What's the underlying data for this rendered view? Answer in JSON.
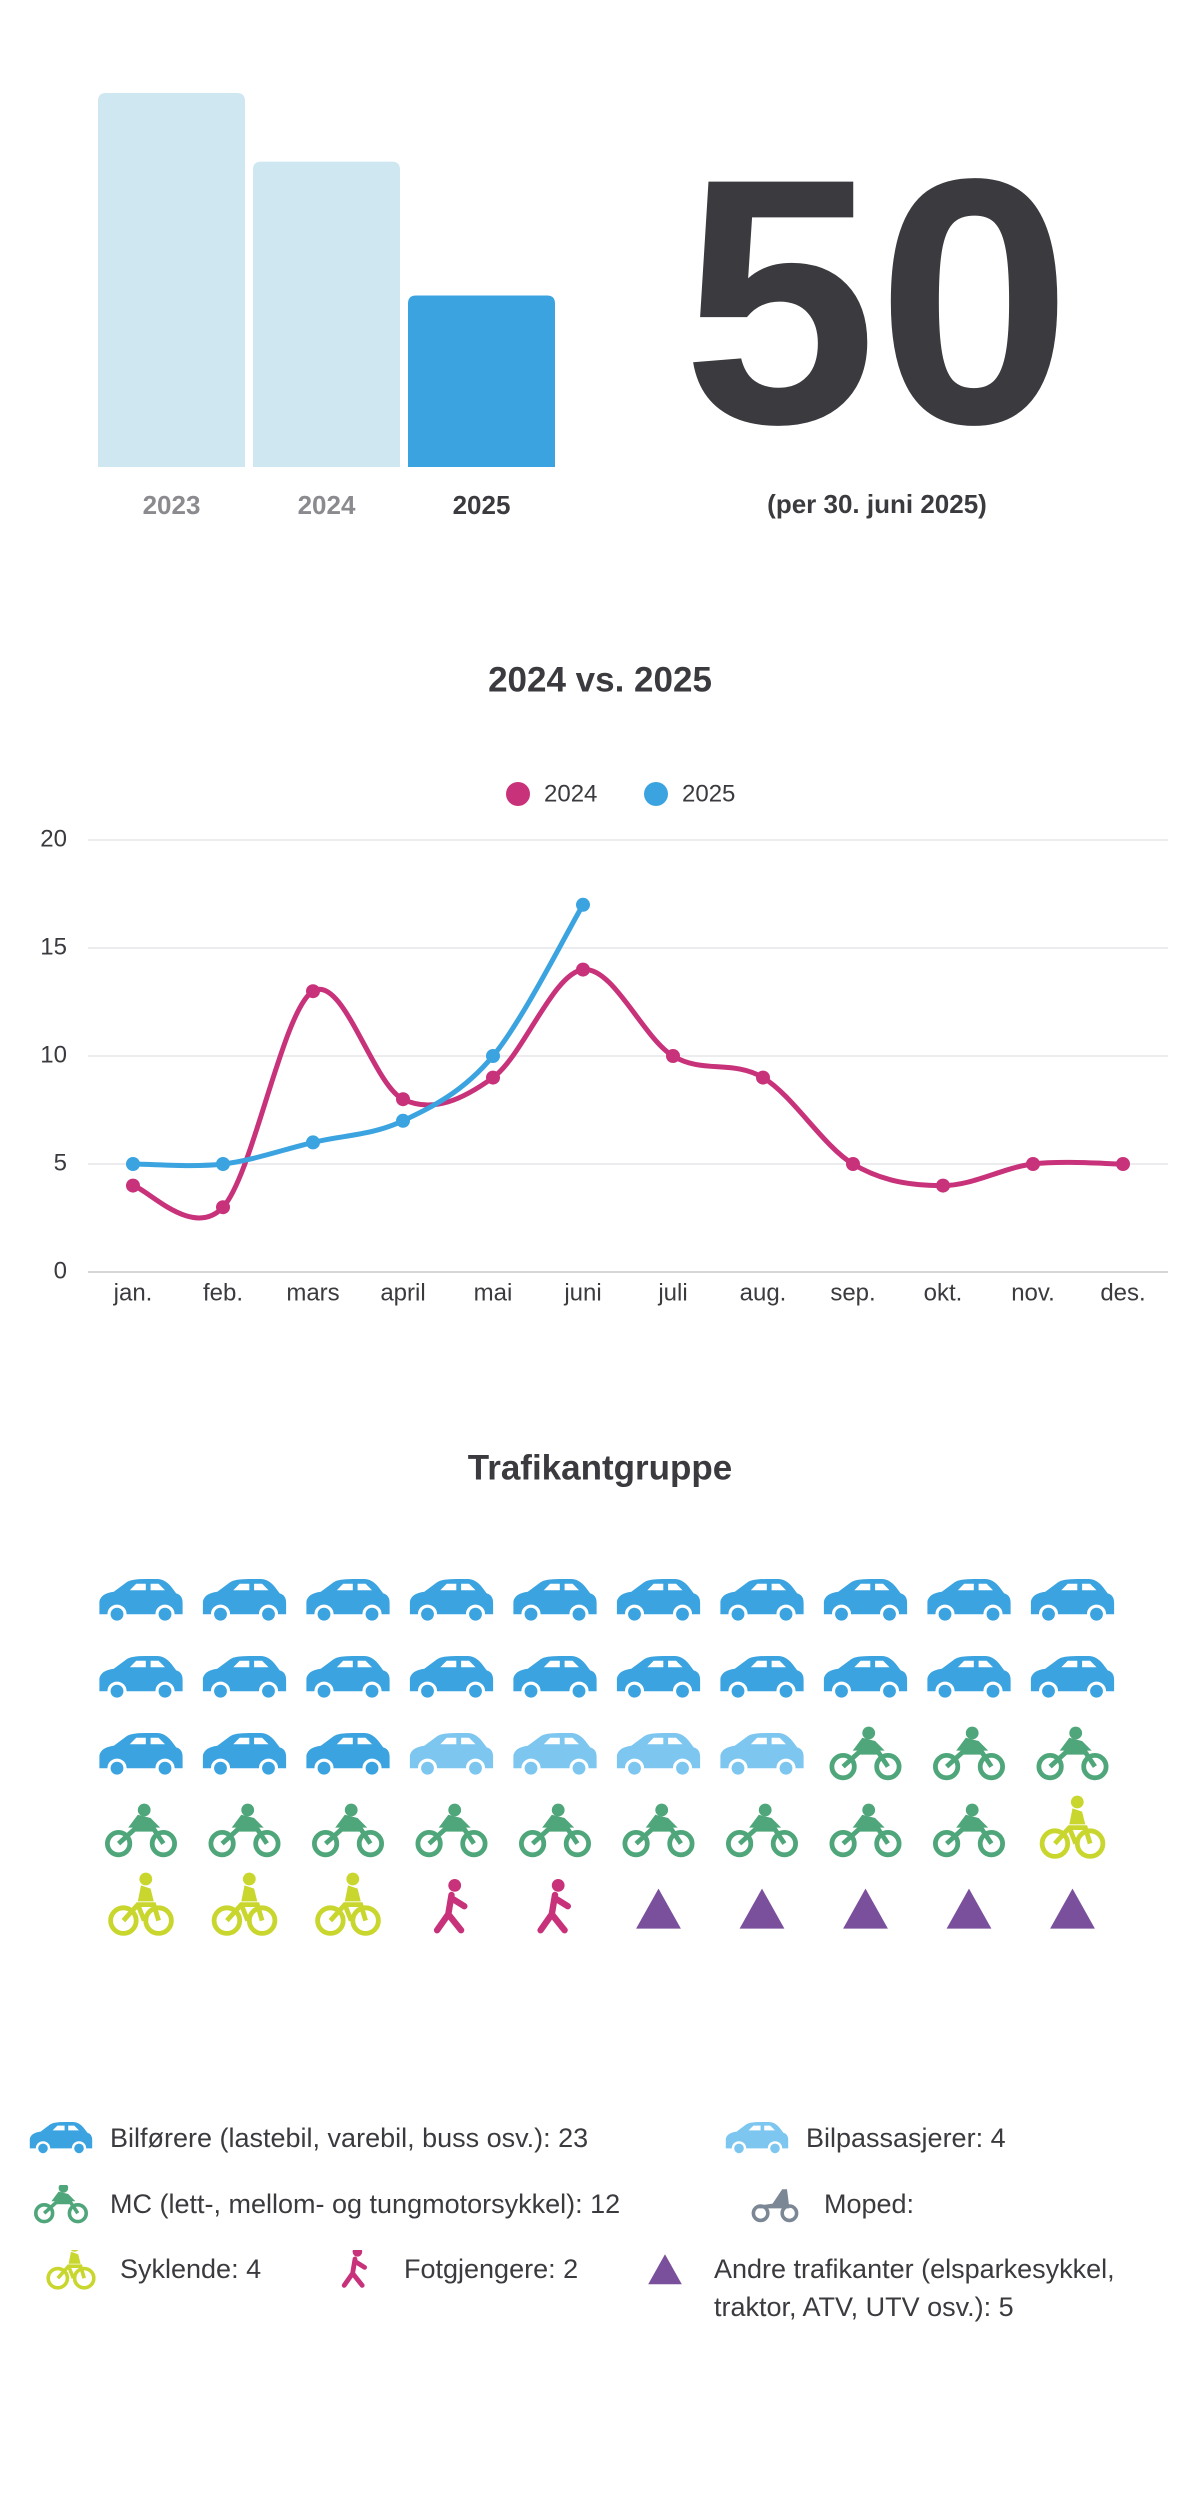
{
  "chart_data": [
    {
      "type": "bar",
      "categories": [
        "2023",
        "2024",
        "2025"
      ],
      "values": [
        109,
        89,
        50
      ],
      "colors": [
        "#cfe7f1",
        "#cfe7f1",
        "#3aa3e0"
      ],
      "annotation": "(per 30. juni 2025)"
    },
    {
      "type": "line",
      "title": "2024 vs. 2025",
      "categories": [
        "jan.",
        "feb.",
        "mars",
        "april",
        "mai",
        "juni",
        "juli",
        "aug.",
        "sep.",
        "okt.",
        "nov.",
        "des."
      ],
      "series": [
        {
          "name": "2024",
          "color": "#c8327a",
          "values": [
            4,
            3,
            13,
            8,
            9,
            14,
            10,
            9,
            5,
            4,
            5,
            5
          ]
        },
        {
          "name": "2025",
          "color": "#3aa3e0",
          "values": [
            5,
            5,
            6,
            7,
            10,
            17,
            null,
            null,
            null,
            null,
            null,
            null
          ]
        }
      ],
      "ylim": [
        0,
        20
      ],
      "yticks": [
        0,
        5,
        10,
        15,
        20
      ],
      "grid": true,
      "legend": "top"
    },
    {
      "type": "waffle",
      "title": "Trafikantgruppe",
      "categories": [
        "Bilførere (lastebil, varebil, buss osv.): 23",
        "Bilpassasjerer: 4",
        "MC (lett-, mellom- og tungmotorsykkel): 12",
        "Moped:",
        "Syklende: 4",
        "Fotgjengere: 2",
        "Andre trafikanter (elsparkesykkel, traktor, ATV, UTV osv.): 5"
      ],
      "values": [
        23,
        4,
        12,
        0,
        4,
        2,
        5
      ],
      "colors": [
        "#3aa3e0",
        "#7cc6f0",
        "#4fa67a",
        "#7b8794",
        "#c9d62e",
        "#c8327a",
        "#7a4f9c"
      ]
    }
  ]
}
